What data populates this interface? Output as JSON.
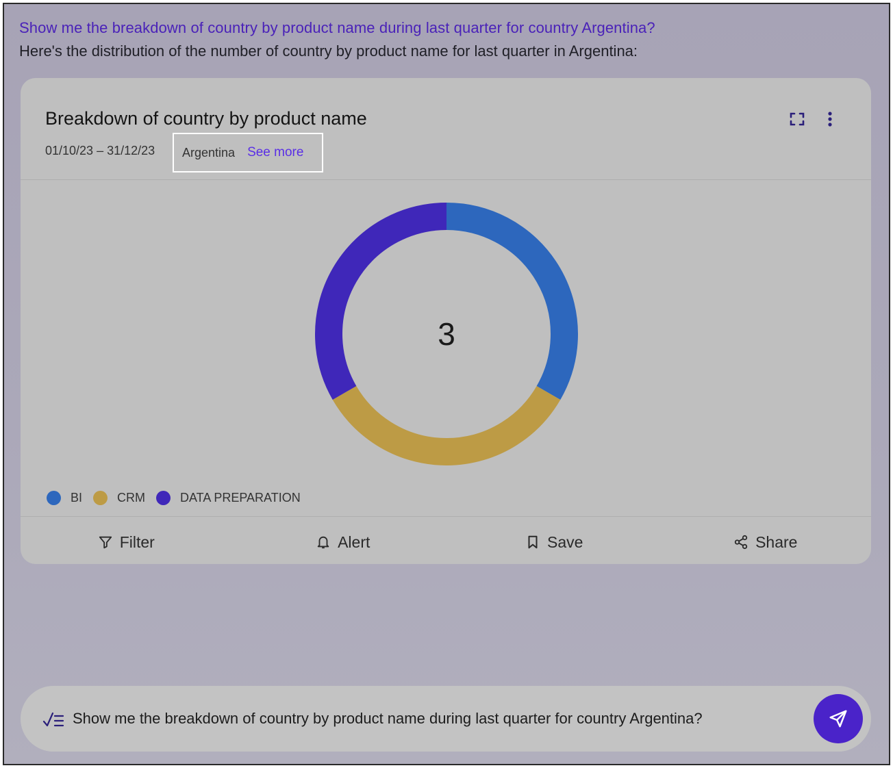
{
  "conversation": {
    "question": "Show me the breakdown of country by product name during last quarter for country Argentina?",
    "answer": "Here's the distribution of the number of country by product name for last quarter in Argentina:"
  },
  "card": {
    "title": "Breakdown of country by product name",
    "date_range": "01/10/23 – 31/12/23",
    "filter_country": "Argentina",
    "see_more": "See more",
    "expand_icon": "expand-icon",
    "menu_icon": "more-vertical-icon"
  },
  "chart_data": {
    "type": "pie",
    "center_label": "3",
    "categories": [
      "BI",
      "CRM",
      "DATA PREPARATION"
    ],
    "values": [
      1,
      1,
      1
    ],
    "colors": [
      "#2d67bd",
      "#bd9b45",
      "#3f27b9"
    ]
  },
  "actions": [
    {
      "label": "Filter",
      "icon": "filter-icon"
    },
    {
      "label": "Alert",
      "icon": "bell-icon"
    },
    {
      "label": "Save",
      "icon": "bookmark-icon"
    },
    {
      "label": "Share",
      "icon": "share-icon"
    }
  ],
  "composer": {
    "value": "Show me the breakdown of country by product name during last quarter for country Argentina?",
    "icon": "checklist-icon",
    "send_icon": "send-icon"
  }
}
